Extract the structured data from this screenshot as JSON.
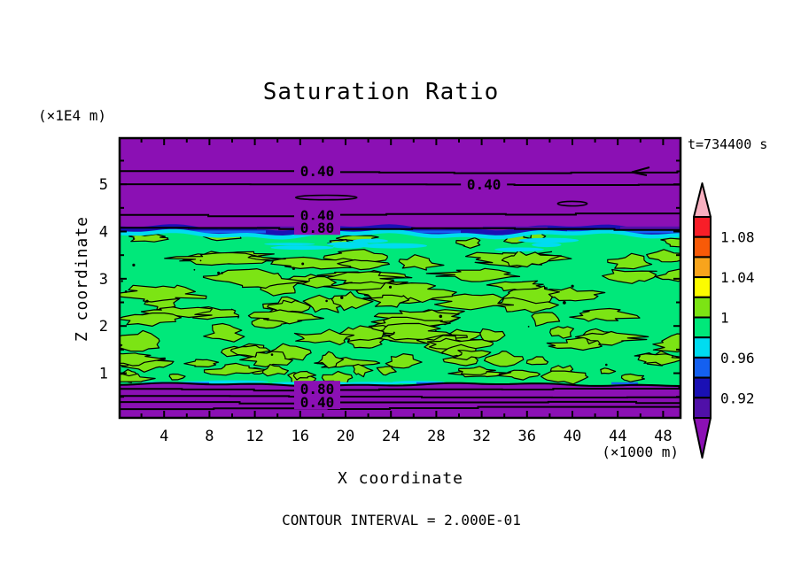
{
  "title": "Saturation Ratio",
  "time_label": "t=734400 s",
  "footer": "CONTOUR INTERVAL = 2.000E-01",
  "y_axis": {
    "label": "Z coordinate",
    "unit": "(×1E4 m)",
    "ticks": [
      5,
      4,
      3,
      2,
      1
    ]
  },
  "x_axis": {
    "label": "X coordinate",
    "unit": "(×1000 m)",
    "ticks": [
      4,
      8,
      12,
      16,
      20,
      24,
      28,
      32,
      36,
      40,
      44,
      48
    ]
  },
  "chart_data": {
    "type": "heatmap",
    "subtype": "filled-contour-cross-section",
    "title": "Saturation Ratio",
    "xlabel": "X coordinate",
    "ylabel": "Z coordinate",
    "x_units": "×1000 m",
    "z_units": "×1E4 m",
    "x_range": [
      0,
      49.5
    ],
    "z_range": [
      0,
      5.95
    ],
    "time_seconds_label": "t=734400 s",
    "contour_interval": 0.2,
    "fill_interval": 0.02,
    "contour_interval_text": "CONTOUR INTERVAL = 2.000E-01",
    "colorbar": {
      "labels_top_to_bottom": [
        "1.08",
        "1.04",
        "1",
        "0.96",
        "0.92"
      ],
      "label_values": [
        1.08,
        1.04,
        1.0,
        0.96,
        0.92
      ],
      "segment_colors_top_to_bottom": [
        "#F81E28",
        "#F85A08",
        "#F8A41C",
        "#FCFC00",
        "#7CE414",
        "#00E87A",
        "#00DCF0",
        "#1460F0",
        "#1A10B4",
        "#5010A8"
      ],
      "arrow_top_color": "#F8B0C0",
      "arrow_bottom_color": "#8B10B4",
      "segment_value_ranges": [
        [
          1.08,
          1.1
        ],
        [
          1.06,
          1.08
        ],
        [
          1.04,
          1.06
        ],
        [
          1.02,
          1.04
        ],
        [
          1.0,
          1.02
        ],
        [
          0.98,
          1.0
        ],
        [
          0.96,
          0.98
        ],
        [
          0.94,
          0.96
        ],
        [
          0.92,
          0.94
        ],
        [
          0.9,
          0.92
        ]
      ]
    },
    "field_colors": {
      "background_below_0p90": "#8B10B4",
      "band_0p98_1p00": "#00E87A",
      "band_1p00_1p02": "#7CE414",
      "band_0p96_0p98": "#00DCF0",
      "band_0p94_0p96": "#1460F0",
      "band_0p92_0p94": "#1A10B4",
      "band_0p90_0p92": "#5010A8"
    },
    "saturated_band": {
      "z_top": 3.9,
      "z_bottom": 0.8,
      "value_range": "≈0.96–1.02"
    },
    "line_contours": [
      {
        "value": 0.4,
        "z": 5.28,
        "label": "0.40",
        "label_x": 17.5
      },
      {
        "value": 0.4,
        "z": 5.0,
        "label": "0.40",
        "label_x": 32.2
      },
      {
        "value": 0.4,
        "z": 4.35,
        "label": "0.40",
        "label_x": 17.5
      },
      {
        "value": 0.8,
        "z": 4.08,
        "label": "0.80",
        "label_x": 17.5
      },
      {
        "value": 0.8,
        "z": 0.67,
        "label": "0.80",
        "label_x": 17.5
      },
      {
        "value": 0.6,
        "z": 0.52,
        "label": null,
        "label_x": null
      },
      {
        "value": 0.4,
        "z": 0.39,
        "label": "0.40",
        "label_x": 17.5
      },
      {
        "value": 0.2,
        "z": 0.24,
        "label": null,
        "label_x": null
      }
    ],
    "closed_contours": [
      {
        "z": 4.72,
        "x_center": 18.3,
        "x_halfwidth": 2.7
      },
      {
        "z": 4.59,
        "x_center": 40.0,
        "x_halfwidth": 1.3
      }
    ]
  }
}
